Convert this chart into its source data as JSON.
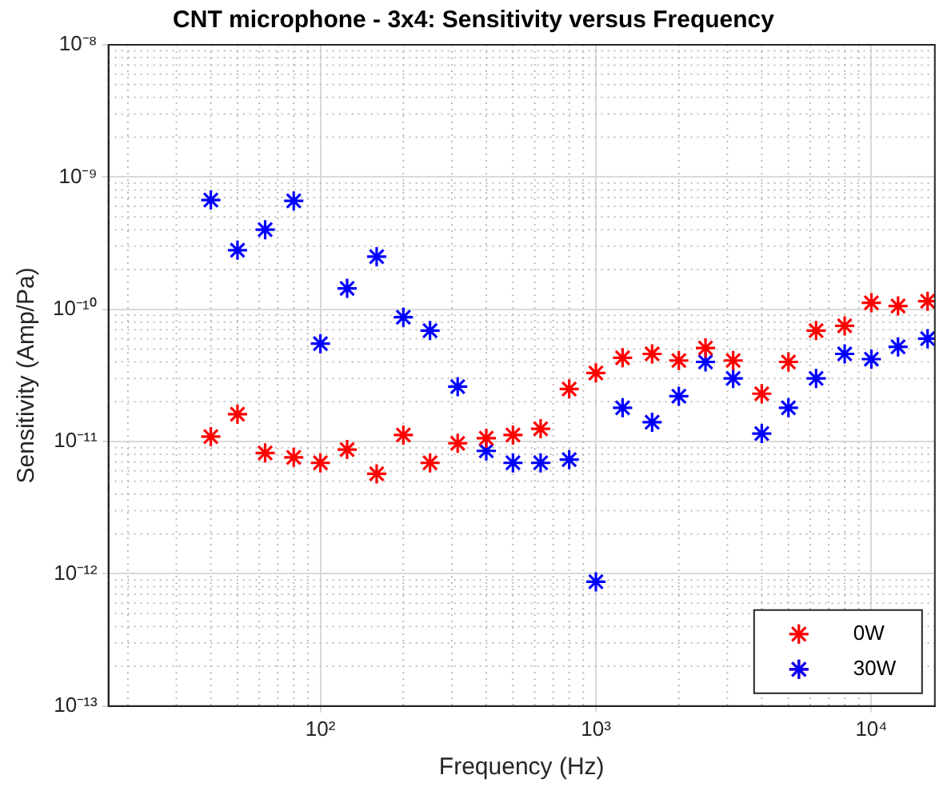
{
  "chart_data": {
    "type": "scatter",
    "title": "CNT microphone - 3x4: Sensitivity versus Frequency",
    "xlabel": "Frequency (Hz)",
    "ylabel": "Sensitivity (Amp/Pa)",
    "x": [
      40,
      50,
      63,
      80,
      100,
      125,
      160,
      200,
      250,
      315,
      400,
      500,
      630,
      800,
      1000,
      1250,
      1600,
      2000,
      2500,
      3150,
      4000,
      5000,
      6300,
      8000,
      10000,
      12500,
      16000
    ],
    "series": [
      {
        "name": "0W",
        "color": "#ff0000",
        "values": [
          1.09e-11,
          1.61e-11,
          8.2e-12,
          7.6e-12,
          6.9e-12,
          8.7e-12,
          5.7e-12,
          1.12e-11,
          6.9e-12,
          9.7e-12,
          1.06e-11,
          1.12e-11,
          1.25e-11,
          2.5e-11,
          3.3e-11,
          4.3e-11,
          4.6e-11,
          4.1e-11,
          5.1e-11,
          4.1e-11,
          2.3e-11,
          4e-11,
          6.9e-11,
          7.5e-11,
          1.12e-10,
          1.06e-10,
          1.15e-10
        ]
      },
      {
        "name": "30W",
        "color": "#0000ff",
        "values": [
          6.7e-10,
          2.8e-10,
          4e-10,
          6.6e-10,
          5.5e-11,
          1.44e-10,
          2.5e-10,
          8.7e-11,
          6.9e-11,
          2.6e-11,
          8.5e-12,
          6.9e-12,
          6.9e-12,
          7.3e-12,
          8.7e-13,
          1.8e-11,
          1.4e-11,
          2.2e-11,
          4e-11,
          3e-11,
          1.15e-11,
          1.8e-11,
          3e-11,
          4.6e-11,
          4.2e-11,
          5.2e-11,
          6e-11
        ]
      }
    ],
    "log": "xy",
    "xlim": [
      17,
      17000
    ],
    "ylim": [
      1e-13,
      1e-08
    ],
    "xticks": [
      {
        "value": 100,
        "label": "10²"
      },
      {
        "value": 1000,
        "label": "10³"
      },
      {
        "value": 10000,
        "label": "10⁴"
      }
    ],
    "yticks": [
      {
        "value": 1e-13,
        "label": "10⁻¹³"
      },
      {
        "value": 1e-12,
        "label": "10⁻¹²"
      },
      {
        "value": 1e-11,
        "label": "10⁻¹¹"
      },
      {
        "value": 1e-10,
        "label": "10⁻¹⁰"
      },
      {
        "value": 1e-09,
        "label": "10⁻⁹"
      },
      {
        "value": 1e-08,
        "label": "10⁻⁸"
      }
    ],
    "grid": true,
    "legend": "bottom right",
    "marker": "cross"
  }
}
